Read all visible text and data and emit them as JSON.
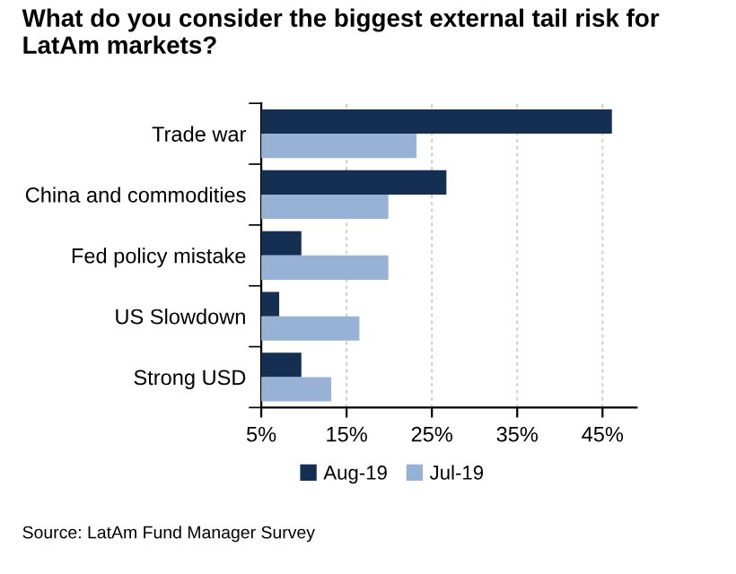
{
  "chart_data": {
    "type": "bar",
    "orientation": "horizontal",
    "title": "What do you consider the biggest external tail risk for LatAm markets?",
    "categories": [
      "Trade war",
      "China and commodities",
      "Fed policy mistake",
      "US Slowdown",
      "Strong USD"
    ],
    "series": [
      {
        "name": "Aug-19",
        "color": "#142f52",
        "values": [
          46.1,
          26.7,
          9.7,
          7.1,
          9.7
        ]
      },
      {
        "name": "Jul-19",
        "color": "#98b2d6",
        "values": [
          23.2,
          19.9,
          19.9,
          16.5,
          13.2
        ]
      }
    ],
    "xlim": [
      5,
      49
    ],
    "xticks": [
      {
        "value": 5,
        "label": "5%"
      },
      {
        "value": 15,
        "label": "15%"
      },
      {
        "value": 25,
        "label": "25%"
      },
      {
        "value": 35,
        "label": "35%"
      },
      {
        "value": 45,
        "label": "45%"
      }
    ],
    "grid": "x",
    "legend": "bottom",
    "annotations": [
      "Source: LatAm Fund Manager Survey"
    ]
  }
}
